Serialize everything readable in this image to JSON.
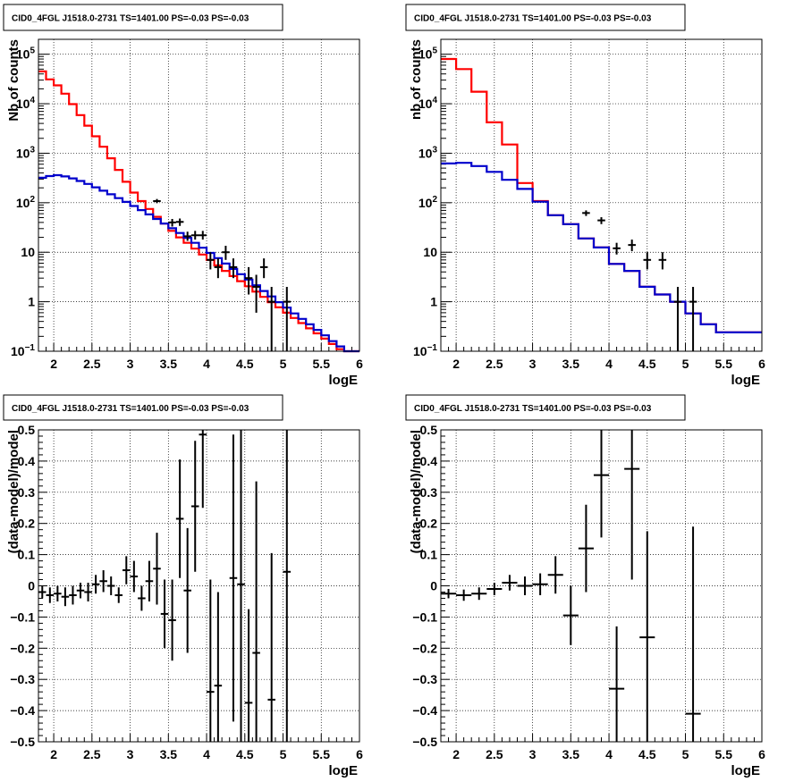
{
  "chart_data": [
    {
      "id": "top-left",
      "type": "line",
      "title": "CID0_4FGL J1518.0-2731 TS=1401.00 PS=-0.03 PS=-0.03",
      "xlabel": "logE",
      "ylabel": "Nb of counts",
      "xlim": [
        1.8,
        6.0
      ],
      "ylim": [
        0.1,
        200000
      ],
      "log_y": true,
      "grid": true,
      "x_ticks": [
        "2",
        "2.5",
        "3",
        "3.5",
        "4",
        "4.5",
        "5",
        "5.5",
        "6"
      ],
      "y_ticks": [
        {
          "v": 0.1,
          "base": "10",
          "exp": "−1"
        },
        {
          "v": 1,
          "label": "1"
        },
        {
          "v": 10,
          "label": "10"
        },
        {
          "v": 100,
          "base": "10",
          "exp": "2"
        },
        {
          "v": 1000,
          "base": "10",
          "exp": "3"
        },
        {
          "v": 10000,
          "base": "10",
          "exp": "4"
        },
        {
          "v": 100000,
          "base": "10",
          "exp": "5"
        }
      ],
      "series": [
        {
          "color": "#ff0000",
          "bin_width": 0.1,
          "x_start": 1.8,
          "values": [
            45000,
            31000,
            23500,
            16000,
            9800,
            5900,
            3600,
            2200,
            1350,
            790,
            460,
            265,
            160,
            108,
            75,
            52,
            38,
            27,
            20,
            15.5,
            11.8,
            9,
            7,
            5.4,
            4.2,
            3.3,
            2.6,
            2.05,
            1.6,
            1.25,
            0.98,
            0.77,
            0.6,
            0.47,
            0.37,
            0.29,
            0.23,
            0.18,
            0.14,
            0.11,
            0.1,
            0.1
          ]
        },
        {
          "color": "#0000cc",
          "bin_width": 0.1,
          "x_start": 1.8,
          "values": [
            320,
            345,
            360,
            340,
            310,
            275,
            240,
            205,
            175,
            148,
            124,
            104,
            86,
            71,
            58,
            47,
            38,
            30.5,
            24.5,
            19.5,
            15.5,
            12.3,
            9.7,
            7.6,
            5.9,
            4.6,
            3.6,
            2.8,
            2.15,
            1.65,
            1.28,
            0.98,
            0.76,
            0.58,
            0.45,
            0.35,
            0.27,
            0.21,
            0.16,
            0.125,
            0.1,
            0.1
          ]
        }
      ],
      "points": [
        {
          "x": 3.35,
          "y": 108,
          "lo": 98,
          "hi": 119
        },
        {
          "x": 3.55,
          "y": 40,
          "lo": 33,
          "hi": 47
        },
        {
          "x": 3.65,
          "y": 41,
          "lo": 34,
          "hi": 48
        },
        {
          "x": 3.75,
          "y": 21,
          "lo": 17,
          "hi": 26
        },
        {
          "x": 3.85,
          "y": 22,
          "lo": 18,
          "hi": 27
        },
        {
          "x": 3.95,
          "y": 22,
          "lo": 18,
          "hi": 27
        },
        {
          "x": 4.05,
          "y": 7,
          "lo": 4.5,
          "hi": 10
        },
        {
          "x": 4.15,
          "y": 5,
          "lo": 3,
          "hi": 7.5
        },
        {
          "x": 4.25,
          "y": 10,
          "lo": 7,
          "hi": 13.5
        },
        {
          "x": 4.35,
          "y": 5,
          "lo": 3,
          "hi": 7.5
        },
        {
          "x": 4.55,
          "y": 3,
          "lo": 1.4,
          "hi": 5
        },
        {
          "x": 4.65,
          "y": 2,
          "lo": 0.6,
          "hi": 3.5
        },
        {
          "x": 4.75,
          "y": 5,
          "lo": 3,
          "hi": 7.5
        },
        {
          "x": 4.85,
          "y": 1,
          "lo": 0.1,
          "hi": 2
        },
        {
          "x": 5.05,
          "y": 1,
          "lo": 0.1,
          "hi": 2
        }
      ]
    },
    {
      "id": "top-right",
      "type": "line",
      "title": "CID0_4FGL J1518.0-2731 TS=1401.00 PS=-0.03 PS=-0.03",
      "xlabel": "logE",
      "ylabel": "nb of counts",
      "xlim": [
        1.8,
        6.0
      ],
      "ylim": [
        0.1,
        200000
      ],
      "log_y": true,
      "grid": true,
      "x_ticks": [
        "2",
        "2.5",
        "3",
        "3.5",
        "4",
        "4.5",
        "5",
        "5.5",
        "6"
      ],
      "y_ticks": [
        {
          "v": 0.1,
          "base": "10",
          "exp": "−1"
        },
        {
          "v": 1,
          "label": "1"
        },
        {
          "v": 10,
          "label": "10"
        },
        {
          "v": 100,
          "base": "10",
          "exp": "2"
        },
        {
          "v": 1000,
          "base": "10",
          "exp": "3"
        },
        {
          "v": 10000,
          "base": "10",
          "exp": "4"
        },
        {
          "v": 100000,
          "base": "10",
          "exp": "5"
        }
      ],
      "series": [
        {
          "color": "#ff0000",
          "bin_width": 0.2,
          "x_start": 1.8,
          "values": [
            80000,
            50000,
            17500,
            4200,
            1500,
            250,
            108,
            56,
            37,
            19,
            12.5,
            5.8,
            4.2,
            2,
            1.4,
            1,
            0.58,
            0.35,
            0.24,
            0.24,
            0.24
          ]
        },
        {
          "color": "#0000cc",
          "bin_width": 0.2,
          "x_start": 1.8,
          "values": [
            620,
            640,
            550,
            420,
            290,
            190,
            105,
            56,
            37,
            19,
            12.5,
            5.8,
            4.2,
            2,
            1.4,
            1,
            0.58,
            0.35,
            0.24,
            0.24,
            0.24
          ]
        }
      ],
      "points": [
        {
          "x": 3.7,
          "y": 62,
          "lo": 54,
          "hi": 70
        },
        {
          "x": 3.9,
          "y": 44,
          "lo": 37,
          "hi": 51
        },
        {
          "x": 4.1,
          "y": 12,
          "lo": 9,
          "hi": 15.5
        },
        {
          "x": 4.3,
          "y": 14,
          "lo": 10.5,
          "hi": 18
        },
        {
          "x": 4.5,
          "y": 7,
          "lo": 4.5,
          "hi": 10
        },
        {
          "x": 4.7,
          "y": 7,
          "lo": 4.5,
          "hi": 10
        },
        {
          "x": 4.9,
          "y": 1,
          "lo": 0.1,
          "hi": 2
        },
        {
          "x": 5.1,
          "y": 1,
          "lo": 0.1,
          "hi": 2
        }
      ]
    },
    {
      "id": "bottom-left",
      "type": "scatter",
      "title": "CID0_4FGL J1518.0-2731 TS=1401.00 PS=-0.03 PS=-0.03",
      "xlabel": "logE",
      "ylabel": "(data-model)/model",
      "xlim": [
        1.8,
        6.0
      ],
      "ylim": [
        -0.5,
        0.5
      ],
      "log_y": false,
      "grid": true,
      "x_ticks": [
        "2",
        "2.5",
        "3",
        "3.5",
        "4",
        "4.5",
        "5",
        "5.5",
        "6"
      ],
      "y_ticks": [
        {
          "v": -0.5,
          "label": "−0.5"
        },
        {
          "v": -0.4,
          "label": "−0.4"
        },
        {
          "v": -0.3,
          "label": "−0.3"
        },
        {
          "v": -0.2,
          "label": "−0.2"
        },
        {
          "v": -0.1,
          "label": "−0.1"
        },
        {
          "v": 0,
          "label": "0"
        },
        {
          "v": 0.1,
          "label": "0.1"
        },
        {
          "v": 0.2,
          "label": "0.2"
        },
        {
          "v": 0.3,
          "label": "0.3"
        },
        {
          "v": 0.4,
          "label": "0.4"
        },
        {
          "v": 0.5,
          "label": "0.5"
        }
      ],
      "bin_half_width": 0.05,
      "points": [
        {
          "x": 1.85,
          "y": -0.02,
          "err": 0.02
        },
        {
          "x": 1.95,
          "y": -0.03,
          "err": 0.025
        },
        {
          "x": 2.05,
          "y": -0.025,
          "err": 0.025
        },
        {
          "x": 2.15,
          "y": -0.035,
          "err": 0.03
        },
        {
          "x": 2.25,
          "y": -0.03,
          "err": 0.03
        },
        {
          "x": 2.35,
          "y": -0.015,
          "err": 0.025
        },
        {
          "x": 2.45,
          "y": -0.02,
          "err": 0.03
        },
        {
          "x": 2.55,
          "y": 0.005,
          "err": 0.03
        },
        {
          "x": 2.65,
          "y": 0.015,
          "err": 0.035
        },
        {
          "x": 2.75,
          "y": 0.0,
          "err": 0.03
        },
        {
          "x": 2.85,
          "y": -0.03,
          "err": 0.025
        },
        {
          "x": 2.95,
          "y": 0.05,
          "err": 0.045
        },
        {
          "x": 3.05,
          "y": 0.03,
          "err": 0.05
        },
        {
          "x": 3.15,
          "y": -0.04,
          "err": 0.04
        },
        {
          "x": 3.25,
          "y": 0.015,
          "err": 0.065
        },
        {
          "x": 3.35,
          "y": 0.055,
          "err": 0.115
        },
        {
          "x": 3.45,
          "y": -0.09,
          "err": 0.11
        },
        {
          "x": 3.55,
          "y": -0.11,
          "err": 0.13
        },
        {
          "x": 3.65,
          "y": 0.215,
          "err": 0.19
        },
        {
          "x": 3.75,
          "y": -0.015,
          "err": 0.2
        },
        {
          "x": 3.85,
          "y": 0.255,
          "err": 0.21
        },
        {
          "x": 3.95,
          "y": 0.485,
          "err": 0.235
        },
        {
          "x": 4.05,
          "y": -0.34,
          "err": 0.36
        },
        {
          "x": 4.15,
          "y": -0.32,
          "err": 0.3
        },
        {
          "x": 4.35,
          "y": 0.025,
          "err": 0.46
        },
        {
          "x": 4.45,
          "y": 0.005,
          "err": 0.52
        },
        {
          "x": 4.55,
          "y": -0.375,
          "err": 0.3
        },
        {
          "x": 4.65,
          "y": -0.215,
          "err": 0.55
        },
        {
          "x": 4.85,
          "y": -0.365,
          "err": 0.47
        },
        {
          "x": 5.05,
          "y": 0.045,
          "err": 0.95
        }
      ]
    },
    {
      "id": "bottom-right",
      "type": "scatter",
      "title": "CID0_4FGL J1518.0-2731 TS=1401.00 PS=-0.03 PS=-0.03",
      "xlabel": "logE",
      "ylabel": "(data-model)/model",
      "xlim": [
        1.8,
        6.0
      ],
      "ylim": [
        -0.5,
        0.5
      ],
      "log_y": false,
      "grid": true,
      "x_ticks": [
        "2",
        "2.5",
        "3",
        "3.5",
        "4",
        "4.5",
        "5",
        "5.5",
        "6"
      ],
      "y_ticks": [
        {
          "v": -0.5,
          "label": "−0.5"
        },
        {
          "v": -0.4,
          "label": "−0.4"
        },
        {
          "v": -0.3,
          "label": "−0.3"
        },
        {
          "v": -0.2,
          "label": "−0.2"
        },
        {
          "v": -0.1,
          "label": "−0.1"
        },
        {
          "v": 0,
          "label": "0"
        },
        {
          "v": 0.1,
          "label": "0.1"
        },
        {
          "v": 0.2,
          "label": "0.2"
        },
        {
          "v": 0.3,
          "label": "0.3"
        },
        {
          "v": 0.4,
          "label": "0.4"
        },
        {
          "v": 0.5,
          "label": "0.5"
        }
      ],
      "bin_half_width": 0.1,
      "points": [
        {
          "x": 1.9,
          "y": -0.025,
          "err": 0.015
        },
        {
          "x": 2.1,
          "y": -0.03,
          "err": 0.018
        },
        {
          "x": 2.3,
          "y": -0.025,
          "err": 0.02
        },
        {
          "x": 2.5,
          "y": -0.01,
          "err": 0.02
        },
        {
          "x": 2.7,
          "y": 0.01,
          "err": 0.025
        },
        {
          "x": 2.9,
          "y": 0.0,
          "err": 0.03
        },
        {
          "x": 3.1,
          "y": 0.005,
          "err": 0.035
        },
        {
          "x": 3.3,
          "y": 0.035,
          "err": 0.06
        },
        {
          "x": 3.5,
          "y": -0.095,
          "err": 0.095
        },
        {
          "x": 3.7,
          "y": 0.12,
          "err": 0.14
        },
        {
          "x": 3.9,
          "y": 0.355,
          "err": 0.2
        },
        {
          "x": 4.1,
          "y": -0.33,
          "err": 0.2
        },
        {
          "x": 4.3,
          "y": 0.375,
          "err": 0.355
        },
        {
          "x": 4.5,
          "y": -0.165,
          "err": 0.34
        },
        {
          "x": 5.1,
          "y": -0.41,
          "err": 0.6
        }
      ]
    }
  ]
}
